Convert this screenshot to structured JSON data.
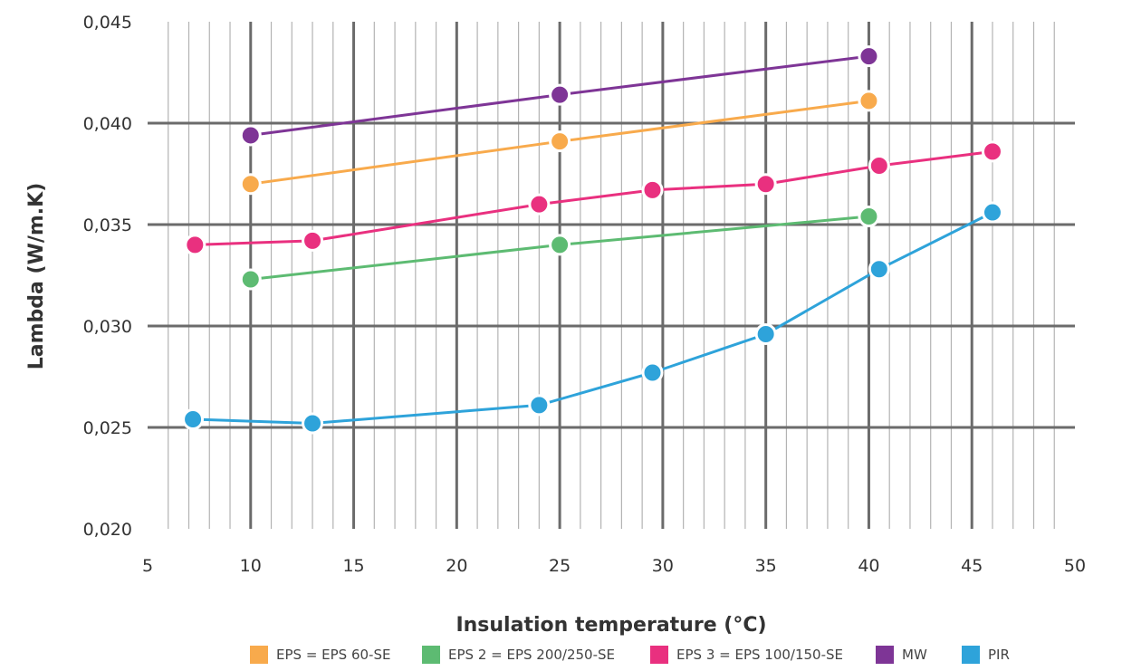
{
  "chart_data": {
    "type": "line",
    "xlabel": "Insulation temperature (°C)",
    "ylabel": "Lambda (W/m.K)",
    "xlim": [
      5,
      50
    ],
    "ylim": [
      0.02,
      0.045
    ],
    "x_ticks": [
      "5",
      "10",
      "15",
      "20",
      "25",
      "30",
      "35",
      "40",
      "45",
      "50"
    ],
    "y_ticks": [
      "0,020",
      "0,025",
      "0,030",
      "0,035",
      "0,040",
      "0,045"
    ],
    "grid": true,
    "legend_position": "bottom",
    "series": [
      {
        "name": "EPS = EPS 60-SE",
        "color": "#f8aa4c",
        "points": [
          [
            10,
            0.037
          ],
          [
            25,
            0.0391
          ],
          [
            40,
            0.0411
          ]
        ]
      },
      {
        "name": "EPS 2 = EPS 200/250-SE",
        "color": "#5dbb72",
        "points": [
          [
            10,
            0.0323
          ],
          [
            25,
            0.034
          ],
          [
            40,
            0.0354
          ]
        ]
      },
      {
        "name": "EPS 3 = EPS 100/150-SE",
        "color": "#e9307f",
        "points": [
          [
            7.3,
            0.034
          ],
          [
            13,
            0.0342
          ],
          [
            24,
            0.036
          ],
          [
            29.5,
            0.0367
          ],
          [
            35,
            0.037
          ],
          [
            40.5,
            0.0379
          ],
          [
            46,
            0.0386
          ]
        ]
      },
      {
        "name": "MW",
        "color": "#7e3596",
        "points": [
          [
            10,
            0.0394
          ],
          [
            25,
            0.0414
          ],
          [
            40,
            0.0433
          ]
        ]
      },
      {
        "name": "PIR",
        "color": "#2ea3da",
        "points": [
          [
            7.2,
            0.0254
          ],
          [
            13,
            0.0252
          ],
          [
            24,
            0.0261
          ],
          [
            29.5,
            0.0277
          ],
          [
            35,
            0.0296
          ],
          [
            40.5,
            0.0328
          ],
          [
            46,
            0.0356
          ]
        ]
      }
    ]
  }
}
